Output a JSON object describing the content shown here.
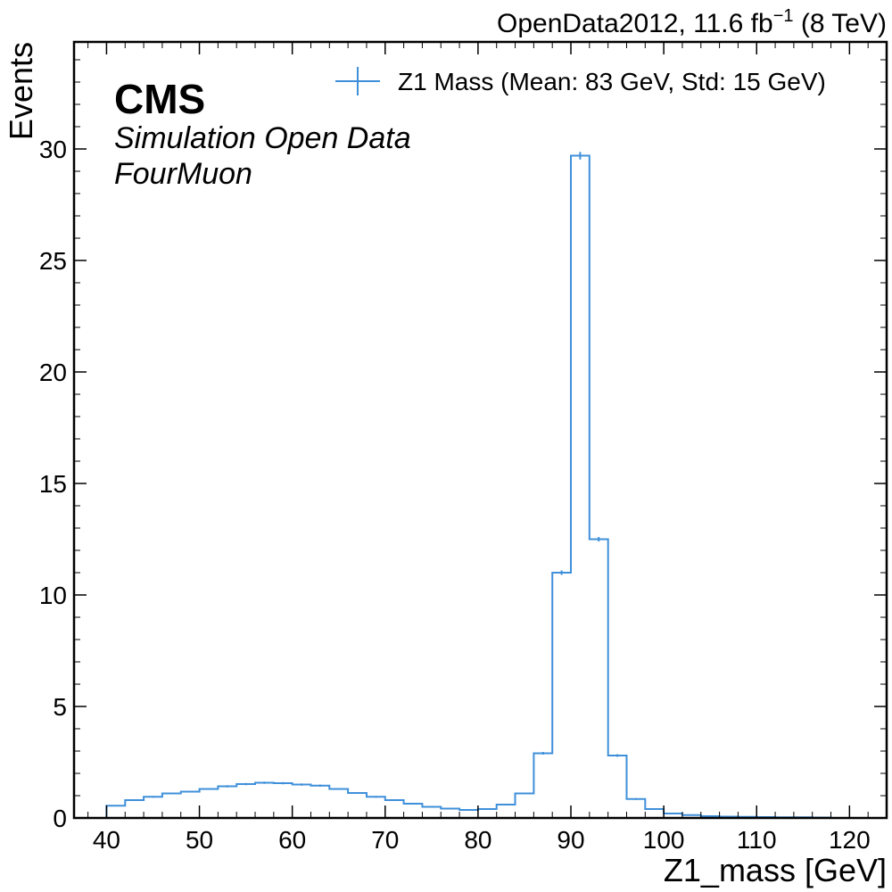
{
  "header": {
    "lumi_prefix": "OpenData2012, 11.6 fb",
    "lumi_exponent": "−1",
    "lumi_suffix": " (8 TeV)"
  },
  "experiment": {
    "name": "CMS",
    "subtitle": "Simulation Open Data",
    "channel": "FourMuon"
  },
  "legend": {
    "entry": "Z1 Mass (Mean: 83 GeV, Std: 15 GeV)",
    "color": "#3f90da"
  },
  "chart_data": {
    "type": "histogram",
    "xlabel": "Z1_mass [GeV]",
    "ylabel": "Events",
    "xlim": [
      36.5,
      124
    ],
    "ylim": [
      0,
      34.8
    ],
    "xticks": [
      40,
      50,
      60,
      70,
      80,
      90,
      100,
      110,
      120
    ],
    "yticks": [
      0,
      5,
      10,
      15,
      20,
      25,
      30
    ],
    "bin_edges": [
      40,
      42,
      44,
      46,
      48,
      50,
      52,
      54,
      56,
      58,
      60,
      62,
      64,
      66,
      68,
      70,
      72,
      74,
      76,
      78,
      80,
      82,
      84,
      86,
      88,
      90,
      92,
      94,
      96,
      98,
      100,
      102,
      104,
      106,
      108,
      110,
      112,
      114,
      116,
      118
    ],
    "series": [
      {
        "name": "Z1 Mass (Mean: 83 GeV, Std: 15 GeV)",
        "values": [
          0.55,
          0.8,
          0.95,
          1.1,
          1.18,
          1.3,
          1.42,
          1.52,
          1.58,
          1.56,
          1.5,
          1.45,
          1.3,
          1.12,
          0.95,
          0.8,
          0.64,
          0.5,
          0.42,
          0.36,
          0.4,
          0.6,
          1.1,
          2.9,
          11.0,
          29.7,
          12.5,
          2.8,
          0.85,
          0.4,
          0.2,
          0.13,
          0.08,
          0.06,
          0.05,
          0.04,
          0.03,
          0.03,
          0.02
        ],
        "errors": [
          0.03,
          0.04,
          0.04,
          0.04,
          0.04,
          0.04,
          0.05,
          0.05,
          0.05,
          0.05,
          0.05,
          0.05,
          0.04,
          0.04,
          0.04,
          0.04,
          0.03,
          0.03,
          0.03,
          0.03,
          0.03,
          0.03,
          0.04,
          0.06,
          0.1,
          0.17,
          0.1,
          0.06,
          0.04,
          0.03,
          0.02,
          0.02,
          0.01,
          0.01,
          0.01,
          0.01,
          0.01,
          0.01,
          0.01
        ],
        "color": "#3f90da"
      }
    ],
    "grid": false,
    "legend_position": "top-right"
  }
}
